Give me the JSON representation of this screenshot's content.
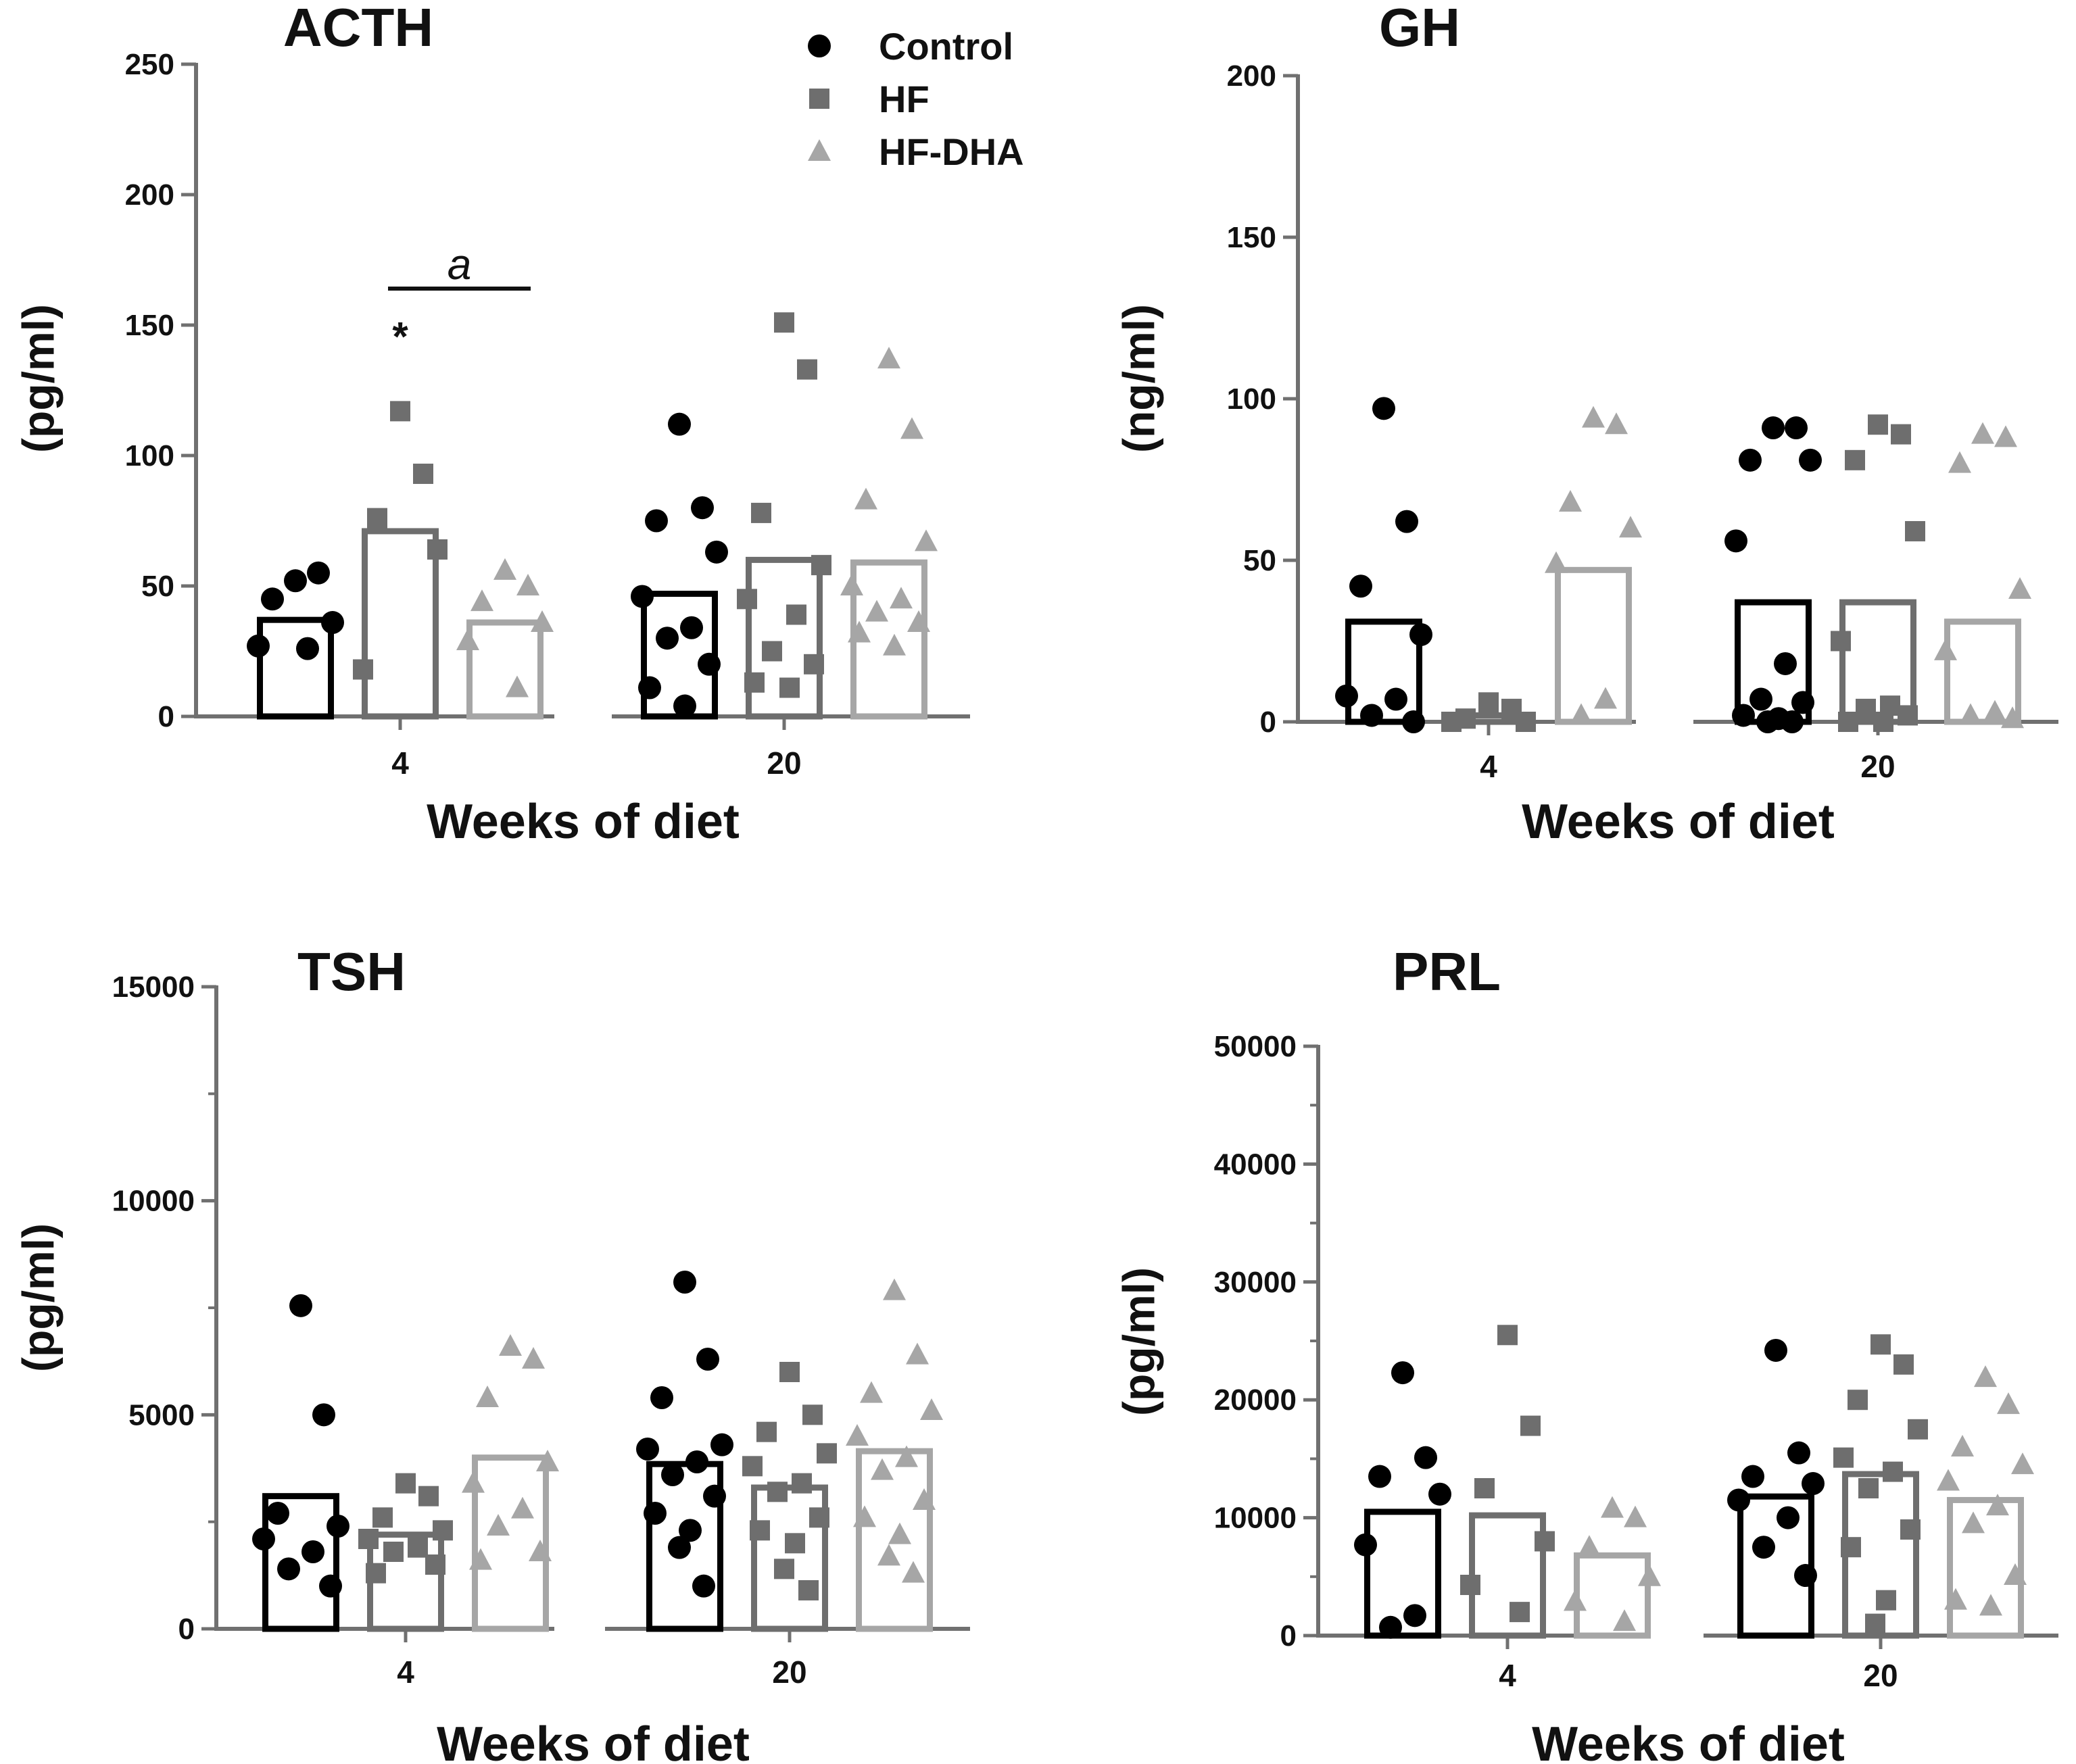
{
  "figure": {
    "legend": {
      "items": [
        {
          "label": "Control",
          "marker": "circle",
          "color": "#000000"
        },
        {
          "label": "HF",
          "marker": "square",
          "color": "#6e6e6e"
        },
        {
          "label": "HF-DHA",
          "marker": "triangle",
          "color": "#a6a6a6"
        }
      ]
    }
  },
  "chart_data": [
    {
      "type": "bar",
      "title": "ACTH",
      "ylabel": "(pg/ml)",
      "xlabel": "Weeks of diet",
      "categories": [
        "4",
        "20"
      ],
      "ylim": [
        0,
        250
      ],
      "yticks": [
        0,
        50,
        100,
        150,
        200,
        250
      ],
      "yticklabels": [
        "0",
        "50",
        "100",
        "150",
        "200",
        "250"
      ],
      "minor_ticks": false,
      "series": [
        {
          "name": "Control",
          "values": [
            37,
            47
          ],
          "points": [
            [
              52,
              55,
              45,
              36,
              27,
              26
            ],
            [
              112,
              80,
              75,
              63,
              46,
              34,
              30,
              20,
              11,
              4
            ]
          ]
        },
        {
          "name": "HF",
          "values": [
            71,
            60
          ],
          "points": [
            [
              117,
              93,
              76,
              64,
              18
            ],
            [
              151,
              133,
              78,
              58,
              45,
              39,
              25,
              20,
              13,
              11
            ]
          ]
        },
        {
          "name": "HF-DHA",
          "values": [
            36,
            59
          ],
          "points": [
            [
              56,
              50,
              44,
              36,
              29,
              11
            ],
            [
              137,
              110,
              83,
              67,
              50,
              45,
              40,
              36,
              32,
              27
            ]
          ]
        }
      ],
      "annotations": [
        {
          "text": "*",
          "category": "4",
          "series": "HF",
          "value": 152
        },
        {
          "text": "a",
          "from_series": "HF",
          "to_series": "HF-DHA",
          "category": "4",
          "value": 164
        }
      ]
    },
    {
      "type": "bar",
      "title": "GH",
      "ylabel": "(ng/ml)",
      "xlabel": "Weeks of diet",
      "categories": [
        "4",
        "20"
      ],
      "ylim": [
        0,
        200
      ],
      "yticks": [
        0,
        50,
        100,
        150,
        200
      ],
      "yticklabels": [
        "0",
        "50",
        "100",
        "150",
        "200"
      ],
      "minor_ticks": false,
      "series": [
        {
          "name": "Control",
          "values": [
            31,
            37
          ],
          "points": [
            [
              97,
              62,
              42,
              27,
              8,
              7,
              2,
              0
            ],
            [
              91,
              91,
              81,
              81,
              56,
              18,
              7,
              6,
              2,
              1,
              0,
              0
            ]
          ]
        },
        {
          "name": "HF",
          "values": [
            2,
            37
          ],
          "points": [
            [
              6,
              4,
              1,
              0,
              0
            ],
            [
              92,
              89,
              81,
              59,
              25,
              5,
              4,
              2,
              0,
              0
            ]
          ]
        },
        {
          "name": "HF-DHA",
          "values": [
            47,
            31
          ],
          "points": [
            [
              94,
              92,
              68,
              60,
              49,
              7,
              2
            ],
            [
              89,
              88,
              80,
              41,
              22,
              3,
              2,
              1
            ]
          ]
        }
      ]
    },
    {
      "type": "bar",
      "title": "TSH",
      "ylabel": "(pg/ml)",
      "xlabel": "Weeks of diet",
      "categories": [
        "4",
        "20"
      ],
      "ylim": [
        0,
        15000
      ],
      "yticks": [
        0,
        5000,
        10000,
        15000
      ],
      "yticklabels": [
        "0",
        "5000",
        "10000",
        "15000"
      ],
      "minor_ticks": true,
      "series": [
        {
          "name": "Control",
          "values": [
            3100,
            3850
          ],
          "points": [
            [
              7550,
              5000,
              2700,
              2400,
              2100,
              1800,
              1400,
              1000
            ],
            [
              8100,
              6300,
              5400,
              4300,
              4200,
              3900,
              3600,
              3100,
              2700,
              2300,
              1900,
              1000
            ]
          ]
        },
        {
          "name": "HF",
          "values": [
            2200,
            3300
          ],
          "points": [
            [
              3400,
              3100,
              2600,
              2300,
              2100,
              1900,
              1800,
              1500,
              1300
            ],
            [
              6000,
              5000,
              4600,
              4100,
              3800,
              3400,
              3200,
              2600,
              2300,
              2000,
              1400,
              900
            ]
          ]
        },
        {
          "name": "HF-DHA",
          "values": [
            4000,
            4150
          ],
          "points": [
            [
              6600,
              6300,
              5400,
              3900,
              3400,
              2800,
              2400,
              1800,
              1600
            ],
            [
              7900,
              6400,
              5500,
              5100,
              4500,
              4000,
              3700,
              3000,
              2600,
              2200,
              1700,
              1300
            ]
          ]
        }
      ]
    },
    {
      "type": "bar",
      "title": "PRL",
      "ylabel": "(pg/ml)",
      "xlabel": "Weeks of diet",
      "categories": [
        "4",
        "20"
      ],
      "ylim": [
        0,
        50000
      ],
      "yticks": [
        0,
        10000,
        20000,
        30000,
        40000,
        50000
      ],
      "yticklabels": [
        "0",
        "10000",
        "20000",
        "30000",
        "40000",
        "50000"
      ],
      "minor_ticks": true,
      "series": [
        {
          "name": "Control",
          "values": [
            10500,
            11800
          ],
          "points": [
            [
              22300,
              15100,
              13500,
              12000,
              7700,
              1700,
              700
            ],
            [
              24200,
              15500,
              13500,
              12900,
              11500,
              10000,
              7500,
              5100
            ]
          ]
        },
        {
          "name": "HF",
          "values": [
            10200,
            13700
          ],
          "points": [
            [
              25500,
              17800,
              12500,
              8000,
              4300,
              2000
            ],
            [
              24700,
              23000,
              20000,
              17500,
              15100,
              13900,
              12500,
              9000,
              7500,
              3000,
              1000
            ]
          ]
        },
        {
          "name": "HF-DHA",
          "values": [
            6800,
            11500
          ],
          "points": [
            [
              10800,
              10000,
              7500,
              5000,
              2900,
              1200
            ],
            [
              21900,
              19600,
              16000,
              14500,
              13100,
              11000,
              9500,
              5100,
              3000,
              2500
            ]
          ]
        }
      ]
    }
  ]
}
